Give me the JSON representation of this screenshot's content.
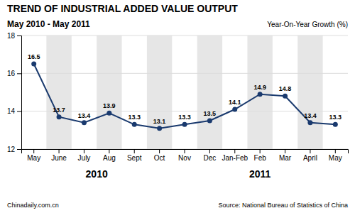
{
  "chart_data": {
    "type": "line",
    "title": "TREND OF INDUSTRIAL ADDED VALUE OUTPUT",
    "subtitle": "May 2010 - May 2011",
    "y_label": "Year-On-Year Growth (%)",
    "categories": [
      "May",
      "June",
      "July",
      "Aug",
      "Sept",
      "Oct",
      "Nov",
      "Dec",
      "Jan-Feb",
      "Feb",
      "Mar",
      "April",
      "May"
    ],
    "values": [
      16.5,
      13.7,
      13.4,
      13.9,
      13.3,
      13.1,
      13.3,
      13.5,
      14.1,
      14.9,
      14.8,
      13.4,
      13.3
    ],
    "color": "#1a3a6e",
    "marker": "circle",
    "ylim": [
      12,
      18
    ],
    "yticks": [
      12,
      14,
      16,
      18
    ],
    "grid": true,
    "data_labels": true,
    "annotations": [
      "2010",
      "2011"
    ],
    "footer": [
      "Chinadaily.com.cn",
      "Source: National Bureau of Statistics of China"
    ]
  }
}
